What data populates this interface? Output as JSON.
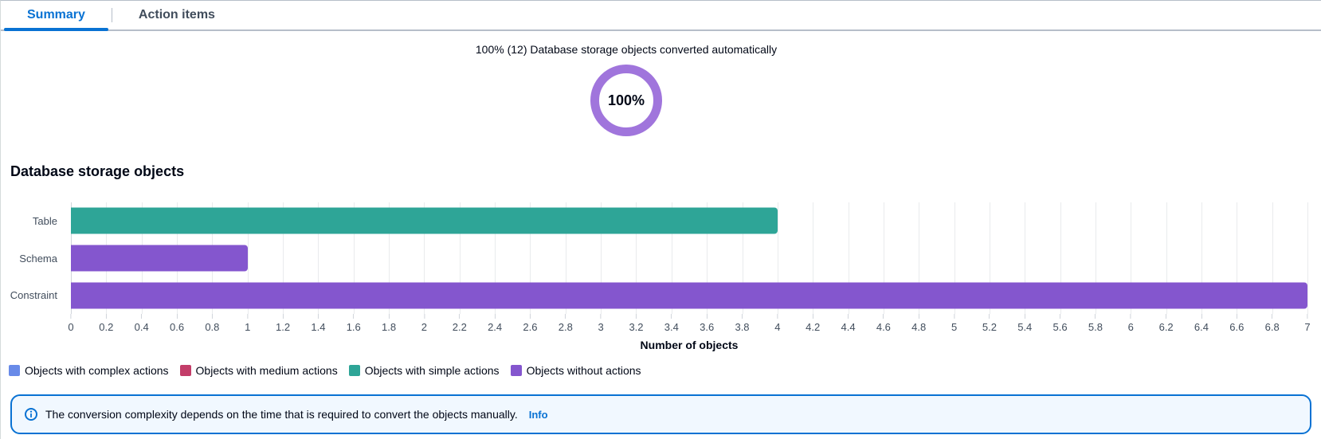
{
  "tabs": {
    "summary": {
      "label": "Summary"
    },
    "action_items": {
      "label": "Action items"
    }
  },
  "donut": {
    "caption": "100% (12) Database storage objects converted automatically",
    "center_label": "100%",
    "percent": 100,
    "converted_count": 12,
    "ring_color": "#a075dc"
  },
  "chart_data": {
    "type": "bar",
    "orientation": "horizontal",
    "title": "Database storage objects",
    "xlabel": "Number of objects",
    "xlim": [
      0,
      7
    ],
    "x_tick_step": 0.2,
    "grid": true,
    "legend_position": "bottom",
    "categories": [
      "Table",
      "Schema",
      "Constraint"
    ],
    "series": [
      {
        "name": "Objects with complex actions",
        "color": "#688ae8",
        "values": [
          0,
          0,
          0
        ]
      },
      {
        "name": "Objects with medium actions",
        "color": "#c33d69",
        "values": [
          0,
          0,
          0
        ]
      },
      {
        "name": "Objects with simple actions",
        "color": "#2ea597",
        "values": [
          4,
          0,
          0
        ]
      },
      {
        "name": "Objects without actions",
        "color": "#8456ce",
        "values": [
          0,
          1,
          7
        ]
      }
    ]
  },
  "flashbar": {
    "message": "The conversion complexity depends on the time that is required to convert the objects manually.",
    "link_label": "Info",
    "accent_color": "#0972d3"
  }
}
